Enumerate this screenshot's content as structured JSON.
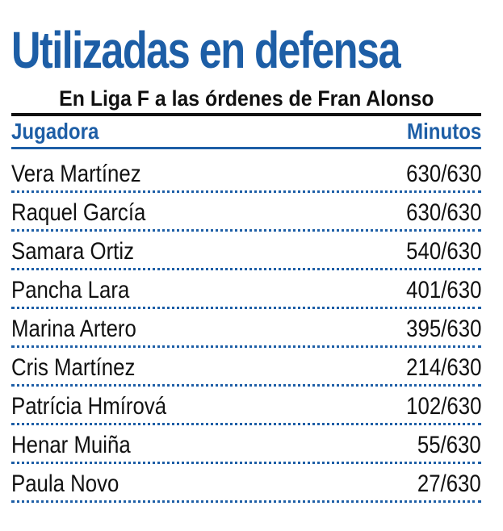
{
  "title": "Utilizadas en defensa",
  "subtitle": "En Liga F a las órdenes de Fran Alonso",
  "table": {
    "headers": {
      "player": "Jugadora",
      "minutes": "Minutos"
    },
    "rows": [
      {
        "player": "Vera Martínez",
        "minutes": "630/630"
      },
      {
        "player": "Raquel García",
        "minutes": "630/630"
      },
      {
        "player": "Samara Ortiz",
        "minutes": "540/630"
      },
      {
        "player": "Pancha Lara",
        "minutes": "401/630"
      },
      {
        "player": "Marina Artero",
        "minutes": "395/630"
      },
      {
        "player": "Cris Martínez",
        "minutes": "214/630"
      },
      {
        "player": "Patrícia Hmírová",
        "minutes": "102/630"
      },
      {
        "player": "Henar Muiña",
        "minutes": "55/630"
      },
      {
        "player": "Paula Novo",
        "minutes": "27/630"
      }
    ]
  },
  "colors": {
    "accent": "#1d5ea6",
    "text": "#111111",
    "background": "#ffffff"
  }
}
